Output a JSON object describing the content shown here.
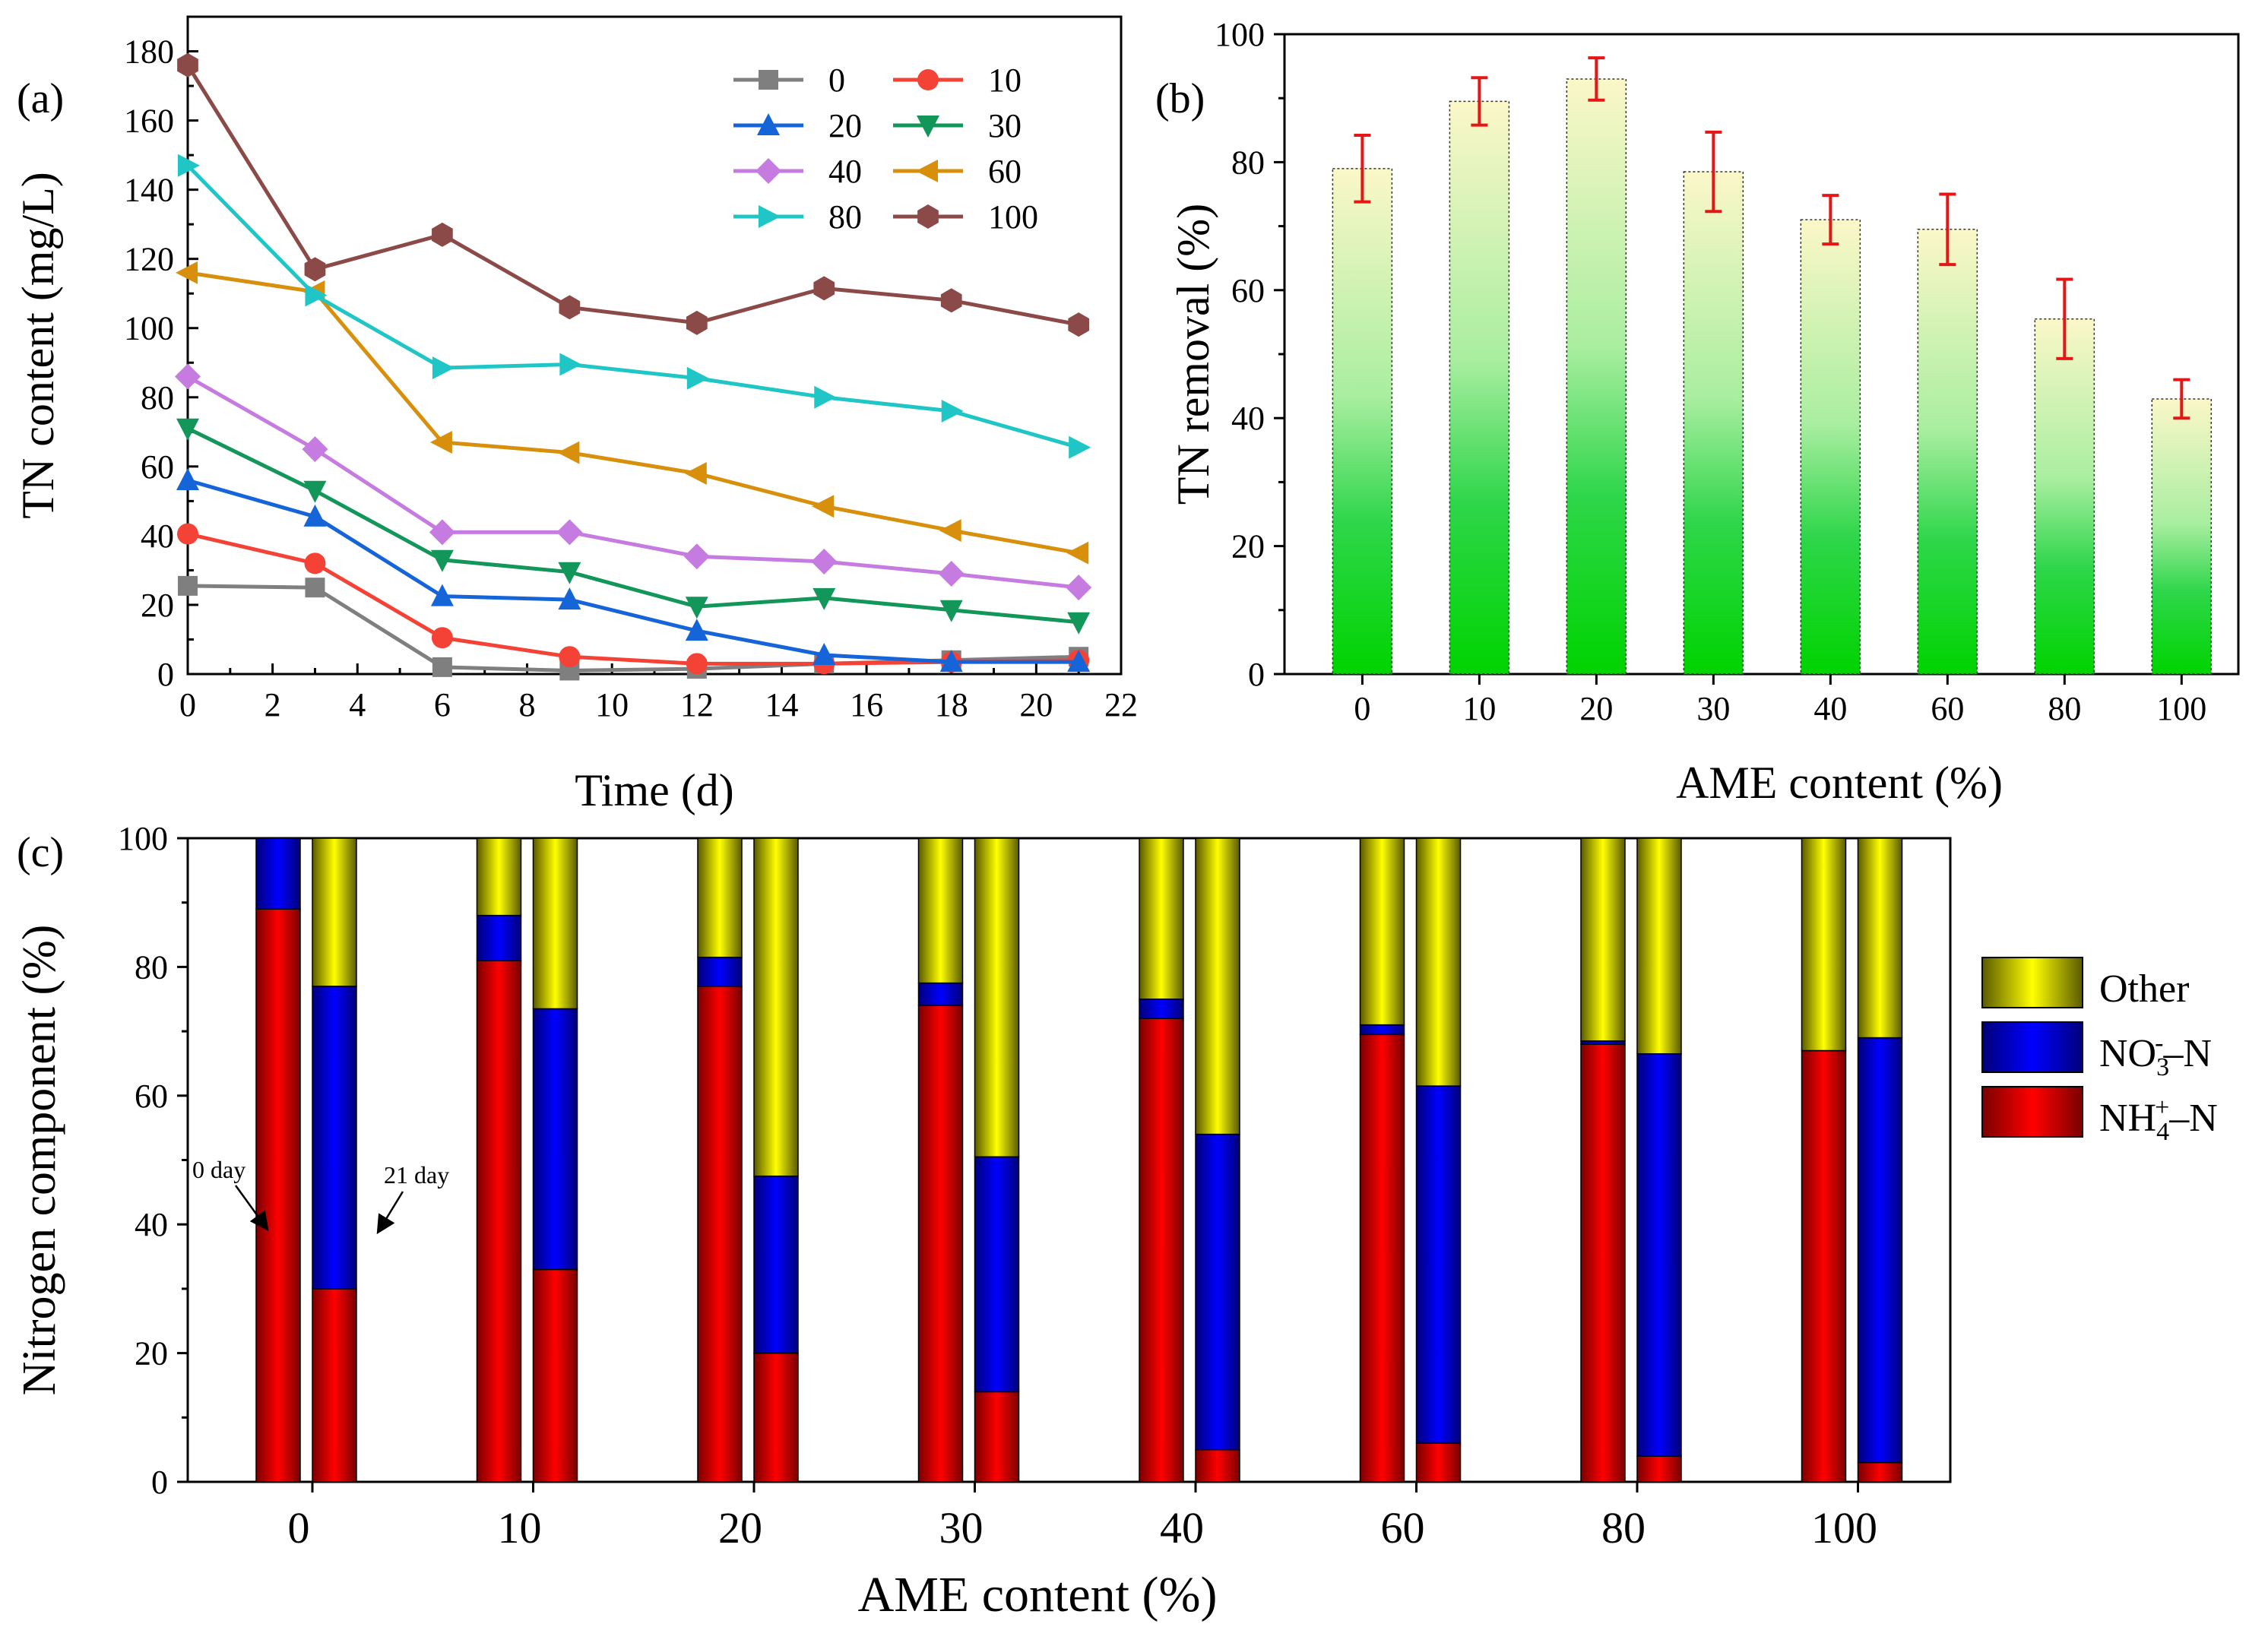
{
  "figure": {
    "description_labels": [
      "(a)",
      "(b)",
      "(c)"
    ]
  },
  "chart_data": [
    {
      "panel": "(a)",
      "type": "line",
      "xlabel": "Time (d)",
      "ylabel": "TN content (mg/L)",
      "xlim": [
        0,
        22
      ],
      "ylim": [
        0,
        190
      ],
      "xticks": [
        0,
        2,
        4,
        6,
        8,
        10,
        12,
        14,
        16,
        18,
        20,
        22
      ],
      "yticks": [
        0,
        20,
        40,
        60,
        80,
        100,
        120,
        140,
        160,
        180
      ],
      "x": [
        0,
        3,
        6,
        9,
        12,
        15,
        18,
        21
      ],
      "legend_position": "top-right",
      "series": [
        {
          "name": "0",
          "color": "#7f7f7f",
          "marker": "square",
          "values": [
            25.5,
            25,
            2,
            1,
            1.5,
            3,
            4,
            5
          ]
        },
        {
          "name": "10",
          "color": "#f44336",
          "marker": "circle",
          "values": [
            40.5,
            32,
            10.5,
            5,
            3,
            3,
            3.5,
            4
          ]
        },
        {
          "name": "20",
          "color": "#1565d8",
          "marker": "triangle-up",
          "values": [
            56,
            45.5,
            22.5,
            21.5,
            12.5,
            5.5,
            3.5,
            3.5
          ]
        },
        {
          "name": "30",
          "color": "#12965a",
          "marker": "triangle-down",
          "values": [
            71,
            53,
            33,
            29.5,
            19.5,
            22,
            18.5,
            15
          ]
        },
        {
          "name": "40",
          "color": "#c57be0",
          "marker": "diamond",
          "values": [
            86,
            65,
            41,
            41,
            34,
            32.5,
            29,
            25
          ]
        },
        {
          "name": "60",
          "color": "#d8900c",
          "marker": "triangle-left",
          "values": [
            116,
            110.5,
            67,
            64,
            58,
            48.5,
            41.5,
            35
          ]
        },
        {
          "name": "80",
          "color": "#20c6c6",
          "marker": "triangle-right",
          "values": [
            147,
            109.5,
            88.5,
            89.5,
            85.5,
            80,
            76,
            65.5
          ]
        },
        {
          "name": "100",
          "color": "#8b4a47",
          "marker": "hexagon",
          "values": [
            176,
            117,
            127,
            106,
            101.5,
            111.5,
            108,
            101
          ]
        }
      ]
    },
    {
      "panel": "(b)",
      "type": "bar",
      "xlabel": "AME content (%)",
      "ylabel": "TN removal (%)",
      "ylim": [
        0,
        100
      ],
      "yticks": [
        0,
        20,
        40,
        60,
        80,
        100
      ],
      "categories": [
        "0",
        "10",
        "20",
        "30",
        "40",
        "60",
        "80",
        "100"
      ],
      "values": [
        79,
        89.5,
        93,
        78.5,
        71,
        69.5,
        55.5,
        43
      ],
      "errors": [
        5.2,
        3.7,
        3.3,
        6.2,
        3.8,
        5.5,
        6.2,
        3
      ],
      "bar_colors": {
        "top": "#fbf7c8",
        "bottom": "#00d400"
      },
      "error_color": "#e51616"
    },
    {
      "panel": "(c)",
      "type": "stacked-bar",
      "xlabel": "AME content (%)",
      "ylabel": "Nitrogen component (%)",
      "ylim": [
        0,
        100
      ],
      "yticks": [
        0,
        20,
        40,
        60,
        80,
        100
      ],
      "categories": [
        "0",
        "10",
        "20",
        "30",
        "40",
        "60",
        "80",
        "100"
      ],
      "pair_labels": [
        "0 day",
        "21 day"
      ],
      "legend_position": "right",
      "series": [
        {
          "name": "NH4+-N",
          "color": "#ff0000",
          "day0": [
            89,
            81,
            77,
            74,
            72,
            69.5,
            68,
            67
          ],
          "day21": [
            30,
            33,
            20,
            14,
            5,
            6,
            4,
            3
          ]
        },
        {
          "name": "NO3−-N",
          "color": "#0000ff",
          "day0": [
            11,
            7,
            4.5,
            3.5,
            3,
            1.5,
            0.5,
            0
          ],
          "day21": [
            47,
            40.5,
            27.5,
            36.5,
            49,
            55.5,
            62.5,
            66
          ]
        },
        {
          "name": "Other",
          "color": "#ffff00",
          "day0": [
            0,
            12,
            18.5,
            22.5,
            25,
            29,
            31.5,
            33
          ],
          "day21": [
            23,
            26.5,
            52.5,
            49.5,
            46,
            38.5,
            33.5,
            31
          ]
        }
      ],
      "legend_labels": {
        "other": "Other",
        "no3_base": "NO",
        "no3_sub": "3",
        "no3_sup": "-",
        "no3_tail": "–N",
        "nh4_base": "NH",
        "nh4_sub": "4",
        "nh4_sup": "+",
        "nh4_tail": "–N"
      }
    }
  ]
}
